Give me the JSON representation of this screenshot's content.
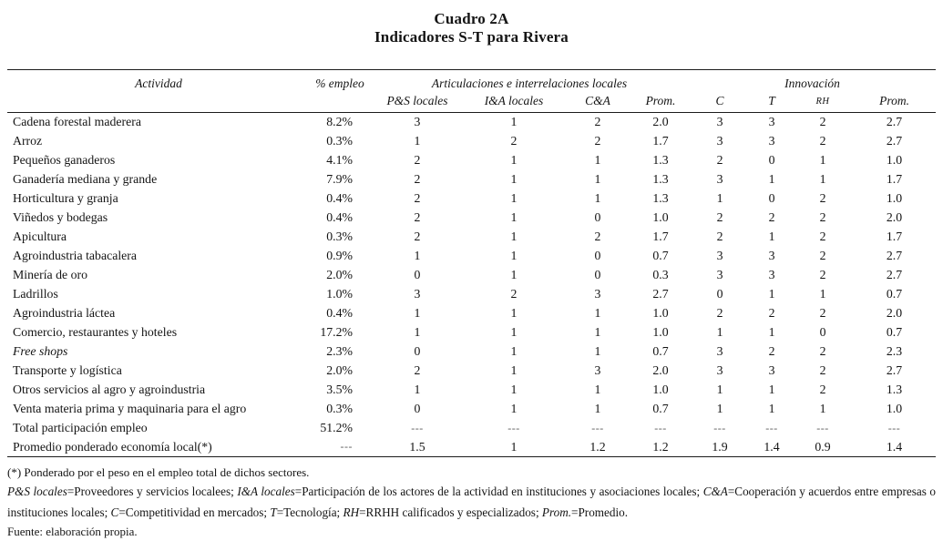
{
  "title": "Cuadro 2A",
  "subtitle": "Indicadores S-T para Rivera",
  "table": {
    "header": {
      "actividad": "Actividad",
      "empleo": "% empleo",
      "group_articulaciones": "Articulaciones e interrelaciones locales",
      "group_innovacion": "Innovación",
      "subcols": [
        "P&S locales",
        "I&A locales",
        "C&A",
        "Prom.",
        "C",
        "T",
        "RH",
        "Prom."
      ]
    },
    "rows": [
      {
        "actividad": "Cadena forestal maderera",
        "italic": false,
        "values": [
          "8.2%",
          "3",
          "1",
          "2",
          "2.0",
          "3",
          "3",
          "2",
          "2.7"
        ]
      },
      {
        "actividad": "Arroz",
        "italic": false,
        "values": [
          "0.3%",
          "1",
          "2",
          "2",
          "1.7",
          "3",
          "3",
          "2",
          "2.7"
        ]
      },
      {
        "actividad": "Pequeños ganaderos",
        "italic": false,
        "values": [
          "4.1%",
          "2",
          "1",
          "1",
          "1.3",
          "2",
          "0",
          "1",
          "1.0"
        ]
      },
      {
        "actividad": "Ganadería mediana y grande",
        "italic": false,
        "values": [
          "7.9%",
          "2",
          "1",
          "1",
          "1.3",
          "3",
          "1",
          "1",
          "1.7"
        ]
      },
      {
        "actividad": "Horticultura y granja",
        "italic": false,
        "values": [
          "0.4%",
          "2",
          "1",
          "1",
          "1.3",
          "1",
          "0",
          "2",
          "1.0"
        ]
      },
      {
        "actividad": "Viñedos y bodegas",
        "italic": false,
        "values": [
          "0.4%",
          "2",
          "1",
          "0",
          "1.0",
          "2",
          "2",
          "2",
          "2.0"
        ]
      },
      {
        "actividad": "Apicultura",
        "italic": false,
        "values": [
          "0.3%",
          "2",
          "1",
          "2",
          "1.7",
          "2",
          "1",
          "2",
          "1.7"
        ]
      },
      {
        "actividad": "Agroindustria tabacalera",
        "italic": false,
        "values": [
          "0.9%",
          "1",
          "1",
          "0",
          "0.7",
          "3",
          "3",
          "2",
          "2.7"
        ]
      },
      {
        "actividad": "Minería de oro",
        "italic": false,
        "values": [
          "2.0%",
          "0",
          "1",
          "0",
          "0.3",
          "3",
          "3",
          "2",
          "2.7"
        ]
      },
      {
        "actividad": "Ladrillos",
        "italic": false,
        "values": [
          "1.0%",
          "3",
          "2",
          "3",
          "2.7",
          "0",
          "1",
          "1",
          "0.7"
        ]
      },
      {
        "actividad": "Agroindustria láctea",
        "italic": false,
        "values": [
          "0.4%",
          "1",
          "1",
          "1",
          "1.0",
          "2",
          "2",
          "2",
          "2.0"
        ]
      },
      {
        "actividad": "Comercio, restaurantes y hoteles",
        "italic": false,
        "values": [
          "17.2%",
          "1",
          "1",
          "1",
          "1.0",
          "1",
          "1",
          "0",
          "0.7"
        ]
      },
      {
        "actividad": "Free shops",
        "italic": true,
        "values": [
          "2.3%",
          "0",
          "1",
          "1",
          "0.7",
          "3",
          "2",
          "2",
          "2.3"
        ]
      },
      {
        "actividad": "Transporte y logística",
        "italic": false,
        "values": [
          "2.0%",
          "2",
          "1",
          "3",
          "2.0",
          "3",
          "3",
          "2",
          "2.7"
        ]
      },
      {
        "actividad": "Otros servicios al agro y agroindustria",
        "italic": false,
        "values": [
          "3.5%",
          "1",
          "1",
          "1",
          "1.0",
          "1",
          "1",
          "2",
          "1.3"
        ]
      },
      {
        "actividad": "Venta materia prima y maquinaria para el agro",
        "italic": false,
        "values": [
          "0.3%",
          "0",
          "1",
          "1",
          "0.7",
          "1",
          "1",
          "1",
          "1.0"
        ]
      },
      {
        "actividad": "Total participación empleo",
        "italic": false,
        "values": [
          "51.2%",
          "---",
          "---",
          "---",
          "---",
          "---",
          "---",
          "---",
          "---"
        ]
      },
      {
        "actividad": "Promedio ponderado economía local(*)",
        "italic": false,
        "values": [
          "---",
          "1.5",
          "1",
          "1.2",
          "1.2",
          "1.9",
          "1.4",
          "0.9",
          "1.4"
        ]
      }
    ]
  },
  "footnotes": {
    "note1": "(*) Ponderado por el peso en el empleo total de dichos sectores.",
    "legend_segments": [
      {
        "text": "P&S locales",
        "italic": true
      },
      {
        "text": "=Proveedores y servicios localees; ",
        "italic": false
      },
      {
        "text": "I&A locales",
        "italic": true
      },
      {
        "text": "=Participación de los actores de la actividad en instituciones y asociaciones locales; ",
        "italic": false
      },
      {
        "text": "C&A",
        "italic": true
      },
      {
        "text": "=Cooperación y acuerdos entre empresas o instituciones locales; ",
        "italic": false
      },
      {
        "text": "C",
        "italic": true
      },
      {
        "text": "=Competitividad en mercados; ",
        "italic": false
      },
      {
        "text": "T",
        "italic": true
      },
      {
        "text": "=Tecnología; ",
        "italic": false
      },
      {
        "text": "RH",
        "italic": true
      },
      {
        "text": "=RRHH calificados y especializados; ",
        "italic": false
      },
      {
        "text": "Prom.",
        "italic": true
      },
      {
        "text": "=Promedio.",
        "italic": false
      }
    ],
    "fuente": "Fuente: elaboración propia."
  }
}
